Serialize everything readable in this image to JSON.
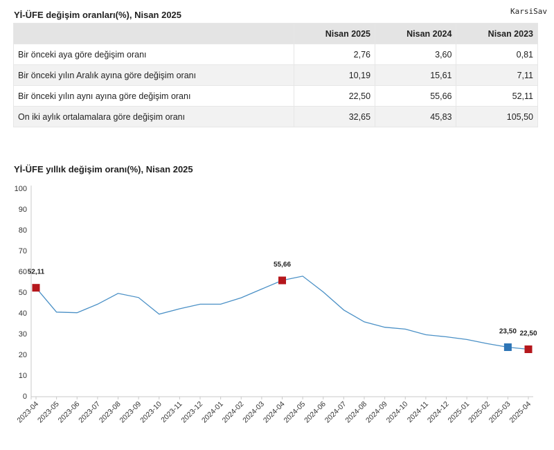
{
  "watermark": "KarsiSav",
  "table": {
    "title": "Yİ-ÜFE değişim oranları(%), Nisan 2025",
    "headers": [
      "",
      "Nisan 2025",
      "Nisan 2024",
      "Nisan 2023"
    ],
    "rows": [
      {
        "label": "Bir önceki aya göre değişim oranı",
        "values": [
          "2,76",
          "3,60",
          "0,81"
        ]
      },
      {
        "label": "Bir önceki yılın Aralık ayına göre değişim oranı",
        "values": [
          "10,19",
          "15,61",
          "7,11"
        ]
      },
      {
        "label": "Bir önceki yılın aynı ayına göre değişim oranı",
        "values": [
          "22,50",
          "55,66",
          "52,11"
        ]
      },
      {
        "label": "On iki aylık ortalamalara göre değişim oranı",
        "values": [
          "32,65",
          "45,83",
          "105,50"
        ]
      }
    ]
  },
  "chart_data": {
    "type": "line",
    "title": "Yİ-ÜFE yıllık değişim oranı(%), Nisan 2025",
    "xlabel": "",
    "ylabel": "",
    "ylim": [
      0,
      100
    ],
    "yticks": [
      0,
      10,
      20,
      30,
      40,
      50,
      60,
      70,
      80,
      90,
      100
    ],
    "grid": false,
    "x": [
      "2023-04",
      "2023-05",
      "2023-06",
      "2023-07",
      "2023-08",
      "2023-09",
      "2023-10",
      "2023-11",
      "2023-12",
      "2024-01",
      "2024-02",
      "2024-03",
      "2024-04",
      "2024-05",
      "2024-06",
      "2024-07",
      "2024-08",
      "2024-09",
      "2024-10",
      "2024-11",
      "2024-12",
      "2025-01",
      "2025-02",
      "2025-03",
      "2025-04"
    ],
    "series": [
      {
        "values": [
          52.11,
          40.4,
          40.1,
          44.2,
          49.4,
          47.4,
          39.4,
          42.0,
          44.2,
          44.2,
          47.3,
          51.5,
          55.66,
          57.7,
          50.1,
          41.4,
          35.7,
          33.1,
          32.2,
          29.5,
          28.5,
          27.2,
          25.2,
          23.5,
          22.5
        ],
        "color": "#4a90c6"
      }
    ],
    "markers": [
      {
        "index": 0,
        "label": "52,11",
        "color": "#b5171c"
      },
      {
        "index": 12,
        "label": "55,66",
        "color": "#b5171c"
      },
      {
        "index": 23,
        "label": "23,50",
        "color": "#2e75b6"
      },
      {
        "index": 24,
        "label": "22,50",
        "color": "#b5171c"
      }
    ]
  }
}
